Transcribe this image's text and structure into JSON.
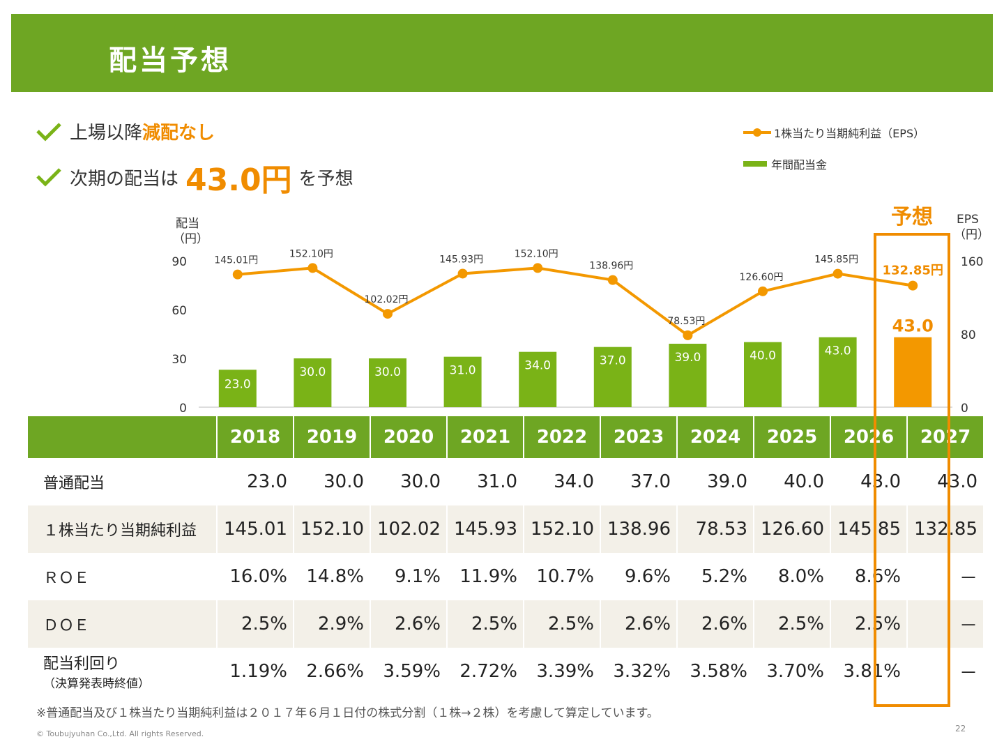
{
  "header": {
    "title": "配当予想"
  },
  "bullets": {
    "b1_pre": "上場以降",
    "b1_hl": "減配なし",
    "b2_pre": "次期の配当は",
    "b2_big": "43.0円",
    "b2_post": "を予想"
  },
  "legend": {
    "eps": "1株当たり当期純利益（EPS）",
    "div": "年間配当金"
  },
  "forecast_label": "予想",
  "colors": {
    "green": "#7ab317",
    "orange": "#f39800",
    "header": "#6ea623"
  },
  "chart_data": {
    "type": "bar+line",
    "categories": [
      "2018",
      "2019",
      "2020",
      "2021",
      "2022",
      "2023",
      "2024",
      "2025",
      "2026",
      "2027"
    ],
    "series": [
      {
        "name": "年間配当金",
        "type": "bar",
        "axis": "left",
        "values": [
          23.0,
          30.0,
          30.0,
          31.0,
          34.0,
          37.0,
          39.0,
          40.0,
          43.0,
          43.0
        ],
        "labels": [
          "23.0",
          "30.0",
          "30.0",
          "31.0",
          "34.0",
          "37.0",
          "39.0",
          "40.0",
          "43.0",
          "43.0"
        ]
      },
      {
        "name": "1株当たり当期純利益（EPS）",
        "type": "line",
        "axis": "right",
        "values": [
          145.01,
          152.1,
          102.02,
          145.93,
          152.1,
          138.96,
          78.53,
          126.6,
          145.85,
          132.85
        ],
        "labels": [
          "145.01円",
          "152.10円",
          "102.02円",
          "145.93円",
          "152.10円",
          "138.96円",
          "78.53円",
          "126.60円",
          "145.85円",
          "132.85円"
        ]
      }
    ],
    "left_axis": {
      "label_l1": "配当",
      "label_l2": "（円）",
      "ticks": [
        "0",
        "30",
        "60",
        "90"
      ],
      "range": [
        0,
        90
      ]
    },
    "right_axis": {
      "label_l1": "EPS",
      "label_l2": "（円）",
      "ticks": [
        "0",
        "80",
        "160"
      ],
      "range": [
        0,
        160
      ]
    },
    "forecast_category": "2027"
  },
  "table": {
    "years": [
      "2018",
      "2019",
      "2020",
      "2021",
      "2022",
      "2023",
      "2024",
      "2025",
      "2026",
      "2027"
    ],
    "rows": [
      {
        "label": "普通配当",
        "values": [
          "23.0",
          "30.0",
          "30.0",
          "31.0",
          "34.0",
          "37.0",
          "39.0",
          "40.0",
          "43.0",
          "43.0"
        ]
      },
      {
        "label": "１株当たり当期純利益",
        "values": [
          "145.01",
          "152.10",
          "102.02",
          "145.93",
          "152.10",
          "138.96",
          "78.53",
          "126.60",
          "145.85",
          "132.85"
        ]
      },
      {
        "label": "ＲＯＥ",
        "values": [
          "16.0%",
          "14.8%",
          "9.1%",
          "11.9%",
          "10.7%",
          "9.6%",
          "5.2%",
          "8.0%",
          "8.6%",
          "－"
        ]
      },
      {
        "label": "ＤＯＥ",
        "values": [
          "2.5%",
          "2.9%",
          "2.6%",
          "2.5%",
          "2.5%",
          "2.6%",
          "2.6%",
          "2.5%",
          "2.5%",
          "－"
        ]
      },
      {
        "label": "配当利回り",
        "sublabel": "（決算発表時終値）",
        "values": [
          "1.19%",
          "2.66%",
          "3.59%",
          "2.72%",
          "3.39%",
          "3.32%",
          "3.58%",
          "3.70%",
          "3.81%",
          "－"
        ]
      }
    ]
  },
  "footnote": "※普通配当及び１株当たり当期純利益は２０１７年６月１日付の株式分割（１株→２株）を考慮して算定しています。",
  "copyright": "© Toubujyuhan Co.,Ltd. All rights Reserved.",
  "page_number": "22"
}
